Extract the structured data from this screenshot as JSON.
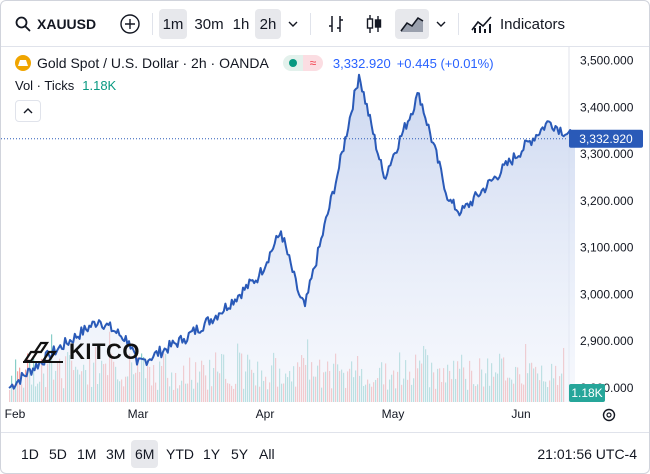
{
  "toolbar": {
    "symbol": "XAUUSD",
    "intervals": [
      {
        "label": "1m",
        "selected": true
      },
      {
        "label": "30m",
        "selected": false
      },
      {
        "label": "1h",
        "selected": false
      },
      {
        "label": "2h",
        "selected": true
      }
    ],
    "indicators_label": "Indicators",
    "icons": [
      "search-icon",
      "plus-circle-icon",
      "chevron-down-icon",
      "bars-style-icon",
      "candles-style-icon",
      "area-style-icon",
      "indicators-icon"
    ]
  },
  "legend": {
    "title": "Gold Spot / U.S. Dollar · 2h · OANDA",
    "last": "3,332.920",
    "change": "+0.445 (+0.01%)",
    "vol_label": "Vol · Ticks",
    "vol_value": "1.18K"
  },
  "colors": {
    "line": "#2a5ab8",
    "area_top": "#c9d5ef",
    "vol_up": "#26a69a",
    "vol_down": "#ef5350",
    "price_tag": "#2a5ab8",
    "vol_tag": "#26a69a"
  },
  "watermark": "KITCO",
  "bottom": {
    "ranges": [
      {
        "label": "1D",
        "selected": false
      },
      {
        "label": "5D",
        "selected": false
      },
      {
        "label": "1M",
        "selected": false
      },
      {
        "label": "3M",
        "selected": false
      },
      {
        "label": "6M",
        "selected": true
      },
      {
        "label": "YTD",
        "selected": false
      },
      {
        "label": "1Y",
        "selected": false
      },
      {
        "label": "5Y",
        "selected": false
      },
      {
        "label": "All",
        "selected": false
      }
    ],
    "clock": "21:01:56 UTC-4"
  },
  "chart_data": {
    "type": "area",
    "y_ticks": [
      "3,500.000",
      "3,400.000",
      "3,300.000",
      "3,200.000",
      "3,100.000",
      "3,000.000",
      "2,900.000",
      "2,800.000"
    ],
    "y_tick_values": [
      3500,
      3400,
      3300,
      3200,
      3100,
      3000,
      2900,
      2800
    ],
    "ylim": [
      2770,
      3525
    ],
    "x_labels": [
      "Feb",
      "Mar",
      "Apr",
      "May",
      "Jun"
    ],
    "last_price_label": "3,332.920",
    "last_price": 3332.92,
    "volume_label": "1.18K",
    "series": [
      {
        "x": [
          "Feb",
          "Feb",
          "Feb",
          "Feb",
          "Mar",
          "Mar",
          "Mar",
          "Mar",
          "Apr",
          "Apr",
          "Apr",
          "Apr",
          "Apr",
          "May",
          "May",
          "May",
          "May",
          "Jun",
          "Jun"
        ],
        "values": [
          2800,
          2870,
          2945,
          2900,
          2850,
          2905,
          2960,
          3040,
          3135,
          3000,
          2975,
          3270,
          3470,
          3250,
          3430,
          3200,
          3175,
          3370,
          3332.92
        ]
      }
    ]
  }
}
